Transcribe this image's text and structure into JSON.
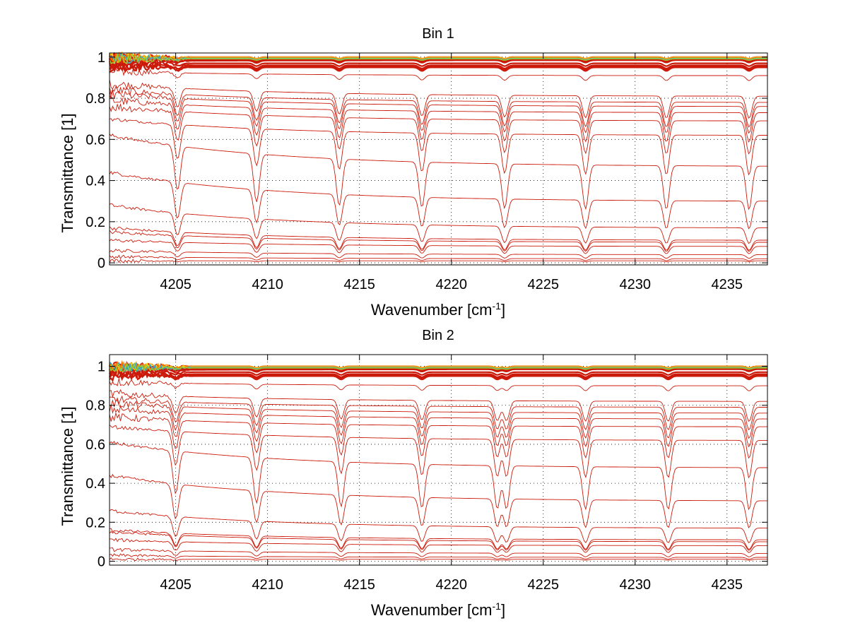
{
  "chart_data": [
    {
      "type": "line",
      "title": "Bin 1",
      "xlabel": "Wavenumber [cm",
      "xlabel_superscript": "-1",
      "xlabel_suffix": "]",
      "ylabel": "Transmittance [1]",
      "xlim": [
        4201.4,
        4237.2
      ],
      "ylim": [
        -0.01,
        1.02
      ],
      "xticks": [
        4205,
        4210,
        4215,
        4220,
        4225,
        4230,
        4235
      ],
      "yticks": [
        0,
        0.2,
        0.4,
        0.6,
        0.8,
        1
      ],
      "ytick_labels": [
        "0",
        "0.2",
        "0.4",
        "0.6",
        "0.8",
        "1"
      ],
      "grid": "dotted",
      "line_color": "#cc1a0a",
      "top_colors": [
        "#ff9900",
        "#ffcc00",
        "#ff6600",
        "#33aacc",
        "#99cc33"
      ],
      "absorption_lines": [
        4205.1,
        4209.4,
        4213.9,
        4218.4,
        4222.9,
        4227.3,
        4231.7,
        4236.2
      ],
      "series_start_levels": [
        1.0,
        0.99,
        0.985,
        0.98,
        0.97,
        0.96,
        0.955,
        0.95,
        0.93,
        0.87,
        0.84,
        0.82,
        0.79,
        0.76,
        0.7,
        0.62,
        0.44,
        0.28,
        0.17,
        0.15,
        0.11,
        0.06,
        0.03,
        0.01
      ],
      "series_end_levels": [
        1.0,
        0.995,
        0.99,
        0.985,
        0.97,
        0.96,
        0.955,
        0.95,
        0.91,
        0.81,
        0.78,
        0.76,
        0.73,
        0.69,
        0.62,
        0.47,
        0.3,
        0.17,
        0.11,
        0.1,
        0.08,
        0.04,
        0.02,
        0.01
      ]
    },
    {
      "type": "line",
      "title": "Bin 2",
      "xlabel": "Wavenumber [cm",
      "xlabel_superscript": "-1",
      "xlabel_suffix": "]",
      "ylabel": "Transmittance [1]",
      "xlim": [
        4201.4,
        4237.2
      ],
      "ylim": [
        -0.02,
        1.06
      ],
      "xticks": [
        4205,
        4210,
        4215,
        4220,
        4225,
        4230,
        4235
      ],
      "yticks": [
        0,
        0.2,
        0.4,
        0.6,
        0.8,
        1
      ],
      "ytick_labels": [
        "0",
        "0.2",
        "0.4",
        "0.6",
        "0.8",
        "1"
      ],
      "grid": "dotted",
      "line_color": "#cc1a0a",
      "top_colors": [
        "#ff9900",
        "#ffcc00",
        "#ff6600",
        "#33aacc",
        "#99cc33"
      ],
      "absorption_lines": [
        4205.0,
        4209.4,
        4214.0,
        4218.4,
        4222.5,
        4223.0,
        4227.3,
        4231.8,
        4236.2
      ],
      "series_start_levels": [
        1.0,
        0.99,
        0.985,
        0.98,
        0.97,
        0.96,
        0.955,
        0.95,
        0.92,
        0.86,
        0.83,
        0.81,
        0.78,
        0.74,
        0.69,
        0.61,
        0.44,
        0.26,
        0.16,
        0.15,
        0.11,
        0.06,
        0.03,
        0.01
      ],
      "series_end_levels": [
        1.0,
        0.995,
        0.99,
        0.985,
        0.97,
        0.96,
        0.955,
        0.95,
        0.9,
        0.82,
        0.79,
        0.76,
        0.73,
        0.69,
        0.62,
        0.48,
        0.31,
        0.17,
        0.11,
        0.1,
        0.08,
        0.04,
        0.02,
        0.01
      ]
    }
  ]
}
